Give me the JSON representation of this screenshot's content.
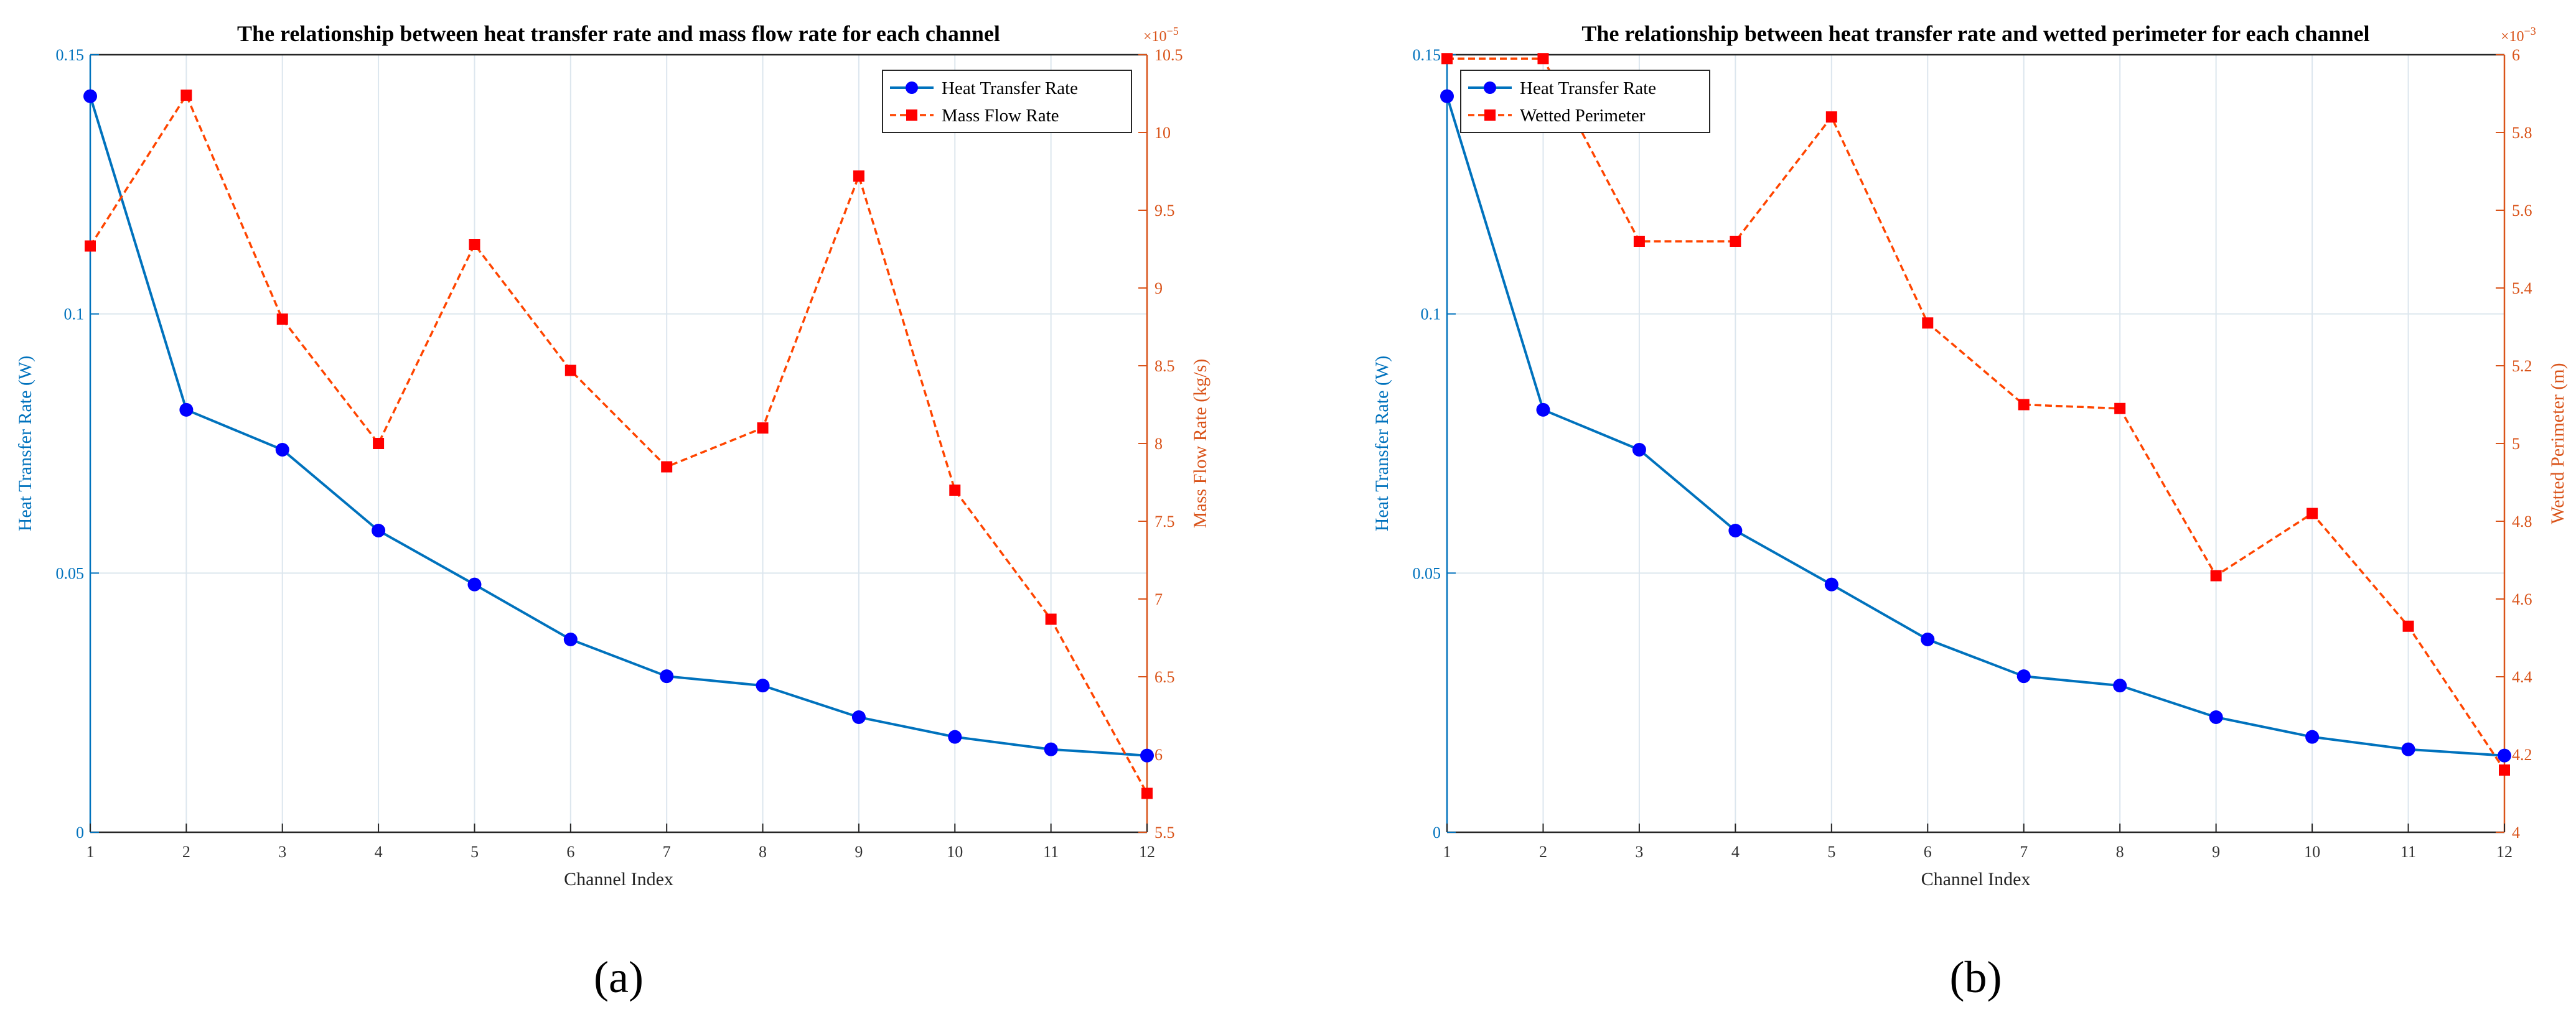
{
  "colors": {
    "left_axis": "#0072BD",
    "right_axis": "#D95319",
    "heat_line": "#0072BD",
    "heat_marker": "#0000FF",
    "red_line": "#FF4500",
    "red_marker": "#FF0000",
    "grid": "#DCE6EE"
  },
  "chart_data": [
    {
      "type": "line",
      "panel_label": "(a)",
      "title": "The relationship between heat transfer rate and mass flow rate for each channel",
      "xlabel": "Channel Index",
      "ylabel_left": "Heat Transfer Rate (W)",
      "ylabel_right": "Mass Flow Rate (kg/s)",
      "right_exponent": "×10",
      "right_exponent_power": "−5",
      "x": [
        1,
        2,
        3,
        4,
        5,
        6,
        7,
        8,
        9,
        10,
        11,
        12
      ],
      "xlim": [
        1,
        12
      ],
      "x_ticks": [
        "1",
        "2",
        "3",
        "4",
        "5",
        "6",
        "7",
        "8",
        "9",
        "10",
        "11",
        "12"
      ],
      "ylim_left": [
        0,
        0.15
      ],
      "y_ticks_left": [
        0,
        0.05,
        0.1,
        0.15
      ],
      "y_tick_labels_left": [
        "0",
        "0.05",
        "0.1",
        "0.15"
      ],
      "ylim_right": [
        5.5,
        10.5
      ],
      "y_ticks_right": [
        5.5,
        6,
        6.5,
        7,
        7.5,
        8,
        8.5,
        9,
        9.5,
        10,
        10.5
      ],
      "y_tick_labels_right": [
        "5.5",
        "6",
        "6.5",
        "7",
        "7.5",
        "8",
        "8.5",
        "9",
        "9.5",
        "10",
        "10.5"
      ],
      "legend_position": "top-right",
      "series": [
        {
          "name": "Heat Transfer Rate",
          "axis": "left",
          "style": "solid-circle",
          "values": [
            0.142,
            0.0815,
            0.0738,
            0.0582,
            0.0478,
            0.0372,
            0.0301,
            0.0283,
            0.0222,
            0.0184,
            0.016,
            0.0148
          ]
        },
        {
          "name": "Mass Flow Rate",
          "axis": "right",
          "style": "dash-square",
          "values": [
            9.27,
            10.24,
            8.8,
            8.0,
            9.28,
            8.47,
            7.85,
            8.1,
            9.72,
            7.7,
            6.87,
            5.75
          ]
        }
      ]
    },
    {
      "type": "line",
      "panel_label": "(b)",
      "title": "The relationship between heat transfer rate and wetted perimeter for each channel",
      "xlabel": "Channel Index",
      "ylabel_left": "Heat Transfer Rate (W)",
      "ylabel_right": "Wetted Perimeter (m)",
      "right_exponent": "×10",
      "right_exponent_power": "−3",
      "x": [
        1,
        2,
        3,
        4,
        5,
        6,
        7,
        8,
        9,
        10,
        11,
        12
      ],
      "xlim": [
        1,
        12
      ],
      "x_ticks": [
        "1",
        "2",
        "3",
        "4",
        "5",
        "6",
        "7",
        "8",
        "9",
        "10",
        "11",
        "12"
      ],
      "ylim_left": [
        0,
        0.15
      ],
      "y_ticks_left": [
        0,
        0.05,
        0.1,
        0.15
      ],
      "y_tick_labels_left": [
        "0",
        "0.05",
        "0.1",
        "0.15"
      ],
      "ylim_right": [
        4,
        6
      ],
      "y_ticks_right": [
        4,
        4.2,
        4.4,
        4.6,
        4.8,
        5,
        5.2,
        5.4,
        5.6,
        5.8,
        6
      ],
      "y_tick_labels_right": [
        "4",
        "4.2",
        "4.4",
        "4.6",
        "4.8",
        "5",
        "5.2",
        "5.4",
        "5.6",
        "5.8",
        "6"
      ],
      "legend_position": "top-left",
      "series": [
        {
          "name": "Heat Transfer Rate",
          "axis": "left",
          "style": "solid-circle",
          "values": [
            0.142,
            0.0815,
            0.0738,
            0.0582,
            0.0478,
            0.0372,
            0.0301,
            0.0283,
            0.0222,
            0.0184,
            0.016,
            0.0148
          ]
        },
        {
          "name": "Wetted Perimeter",
          "axis": "right",
          "style": "dash-square",
          "values": [
            5.99,
            5.99,
            5.52,
            5.52,
            5.84,
            5.31,
            5.1,
            5.09,
            4.66,
            4.82,
            4.53,
            4.16
          ]
        }
      ]
    }
  ]
}
